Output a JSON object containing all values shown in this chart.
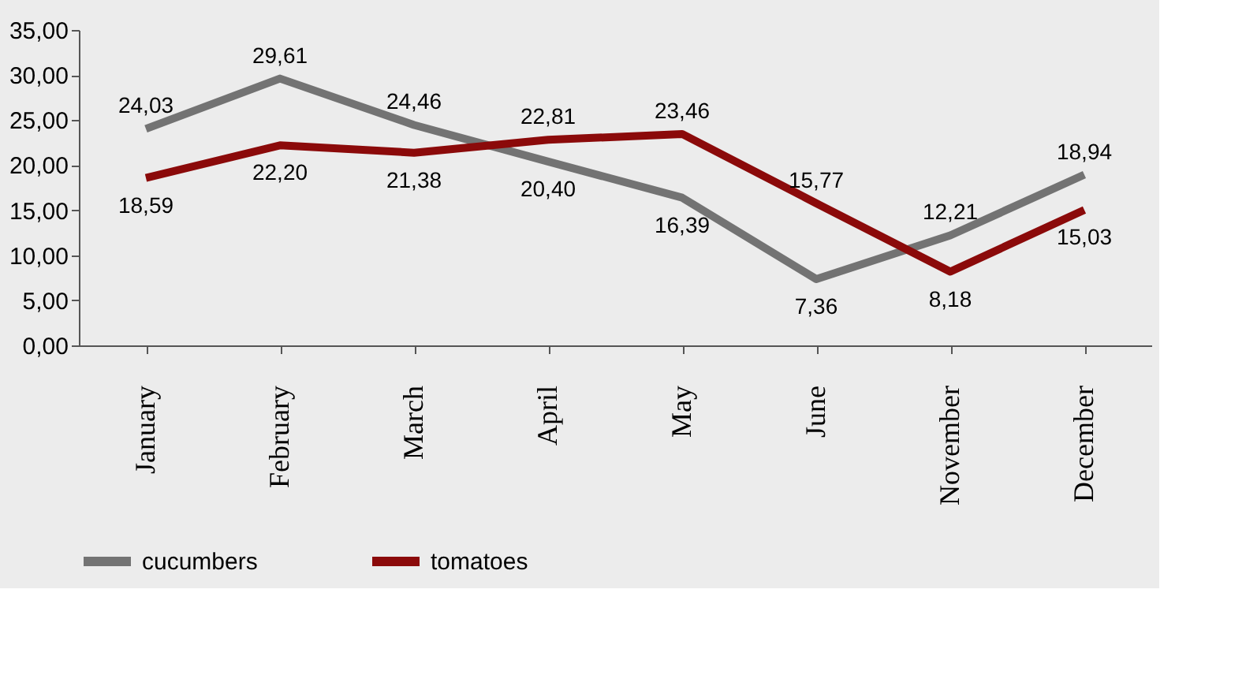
{
  "chart_data": {
    "type": "line",
    "categories": [
      "January",
      "February",
      "March",
      "April",
      "May",
      "June",
      "November",
      "December"
    ],
    "series": [
      {
        "name": "cucumbers",
        "color": "#737373",
        "values": [
          24.03,
          29.61,
          24.46,
          20.4,
          16.39,
          7.36,
          12.21,
          18.94
        ],
        "value_labels": [
          "24,03",
          "29,61",
          "24,46",
          "20,40",
          "16,39",
          "7,36",
          "12,21",
          "18,94"
        ]
      },
      {
        "name": "tomatoes",
        "color": "#8b0a0a",
        "values": [
          18.59,
          22.2,
          21.38,
          22.81,
          23.46,
          15.77,
          8.18,
          15.03
        ],
        "value_labels": [
          "18,59",
          "22,20",
          "21,38",
          "22,81",
          "23,46",
          "15,77",
          "8,18",
          "15,03"
        ]
      }
    ],
    "ylim": [
      0,
      35
    ],
    "yticks": [
      {
        "value": 0,
        "label": "0,00"
      },
      {
        "value": 5,
        "label": "5,00"
      },
      {
        "value": 10,
        "label": "10,00"
      },
      {
        "value": 15,
        "label": "15,00"
      },
      {
        "value": 20,
        "label": "20,00"
      },
      {
        "value": 25,
        "label": "25,00"
      },
      {
        "value": 30,
        "label": "30,00"
      },
      {
        "value": 35,
        "label": "35,00"
      }
    ],
    "grid": false,
    "legend": "bottom",
    "marker": "none",
    "line_style": "solid"
  }
}
